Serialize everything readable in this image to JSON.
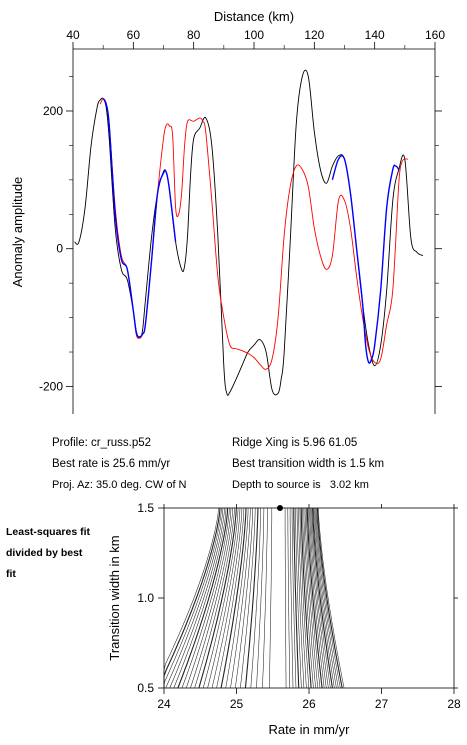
{
  "chart_data": [
    {
      "type": "line",
      "title": "",
      "xlabel": "Distance (km)",
      "ylabel": "Anomaly amplitude",
      "xlim": [
        40,
        160
      ],
      "ylim": [
        -240,
        290
      ],
      "xticks": [
        40,
        60,
        80,
        100,
        120,
        140,
        160
      ],
      "yticks": [
        -200,
        0,
        200
      ],
      "grid": false,
      "legend": "none",
      "series": [
        {
          "color": "#000000",
          "x": [
            40.5,
            42,
            44,
            46,
            48,
            49,
            50,
            51,
            52,
            54,
            56,
            58,
            60,
            61,
            62,
            63,
            64,
            66,
            68,
            70,
            71,
            72,
            74,
            76,
            77,
            78,
            79,
            80,
            82,
            84,
            86,
            88,
            90,
            91,
            92,
            94,
            96,
            98,
            100,
            102,
            104,
            106,
            108,
            109,
            110,
            112,
            114,
            116,
            118,
            120,
            122,
            124,
            126,
            128,
            130,
            132,
            134,
            136,
            138,
            140,
            142,
            144,
            146,
            148,
            150,
            152,
            154,
            156
          ],
          "y": [
            10,
            10,
            60,
            150,
            205,
            216,
            218,
            205,
            160,
            30,
            -30,
            -45,
            -90,
            -120,
            -130,
            -120,
            -75,
            15,
            80,
            112,
            110,
            85,
            10,
            -30,
            -25,
            20,
            110,
            160,
            175,
            190,
            150,
            20,
            -170,
            -210,
            -208,
            -190,
            -170,
            -150,
            -140,
            -132,
            -150,
            -205,
            -210,
            -190,
            -150,
            10,
            180,
            250,
            250,
            170,
            115,
            95,
            120,
            135,
            130,
            80,
            0,
            -80,
            -140,
            -170,
            -140,
            -60,
            70,
            115,
            130,
            15,
            -5,
            -10
          ]
        },
        {
          "color": "#ff0000",
          "x": [
            49,
            50,
            51,
            52,
            54,
            56,
            58,
            60,
            61,
            62,
            63,
            64,
            66,
            68,
            70,
            71,
            72,
            73,
            74,
            75,
            76,
            77,
            78,
            80,
            82,
            83,
            84,
            86,
            88,
            90,
            92,
            94,
            96,
            98,
            100,
            102,
            104,
            106,
            108,
            110,
            112,
            114,
            116,
            118,
            120,
            122,
            124,
            126,
            128,
            130,
            132,
            134,
            136,
            138,
            140,
            142,
            144,
            146,
            148,
            149,
            150,
            151
          ],
          "y": [
            210,
            218,
            210,
            180,
            60,
            -10,
            -30,
            -90,
            -125,
            -130,
            -125,
            -110,
            -20,
            80,
            160,
            180,
            178,
            165,
            60,
            50,
            80,
            150,
            185,
            185,
            190,
            185,
            170,
            70,
            -40,
            -100,
            -140,
            -145,
            -148,
            -152,
            -158,
            -168,
            -175,
            -160,
            -100,
            20,
            90,
            120,
            115,
            90,
            30,
            -10,
            -30,
            -10,
            70,
            70,
            30,
            -40,
            -100,
            -145,
            -165,
            -160,
            -110,
            -60,
            95,
            125,
            130,
            130
          ]
        },
        {
          "color": "#0000ff",
          "x": [
            50,
            51,
            52,
            54,
            56,
            58,
            60,
            61,
            62,
            63,
            64,
            66,
            68,
            70,
            71,
            72,
            74
          ],
          "y": [
            218,
            210,
            180,
            50,
            -15,
            -30,
            -90,
            -122,
            -128,
            -124,
            -110,
            -20,
            80,
            110,
            110,
            85,
            10
          ]
        },
        {
          "color": "#0000ff",
          "x": [
            126,
            128,
            130,
            132,
            134,
            136,
            137,
            138,
            139,
            140,
            142,
            144,
            146,
            147,
            148
          ],
          "y": [
            100,
            130,
            130,
            80,
            0,
            -80,
            -140,
            -165,
            -160,
            -140,
            -60,
            60,
            115,
            120,
            115
          ]
        }
      ],
      "info": [
        "Profile: cr_russ.p52",
        "Best rate is 25.6 mm/yr",
        "Proj. Az: 35.0 deg. CW of N",
        "Ridge Xing is 5.96 61.05",
        "Best transition width is 1.5 km",
        "Depth to source is   3.02 km"
      ]
    },
    {
      "type": "contour",
      "title": "",
      "xlabel": "Rate in mm/yr",
      "ylabel": "Transition width in km",
      "xlim": [
        24,
        28
      ],
      "ylim": [
        0.5,
        1.5
      ],
      "xticks": [
        24,
        25,
        26,
        27,
        28
      ],
      "yticks": [
        0.5,
        1.0,
        1.5
      ],
      "grid": false,
      "best_fit_point": {
        "x": 25.6,
        "y": 1.5
      },
      "note": "Least-squares fit divided by best fit"
    }
  ]
}
